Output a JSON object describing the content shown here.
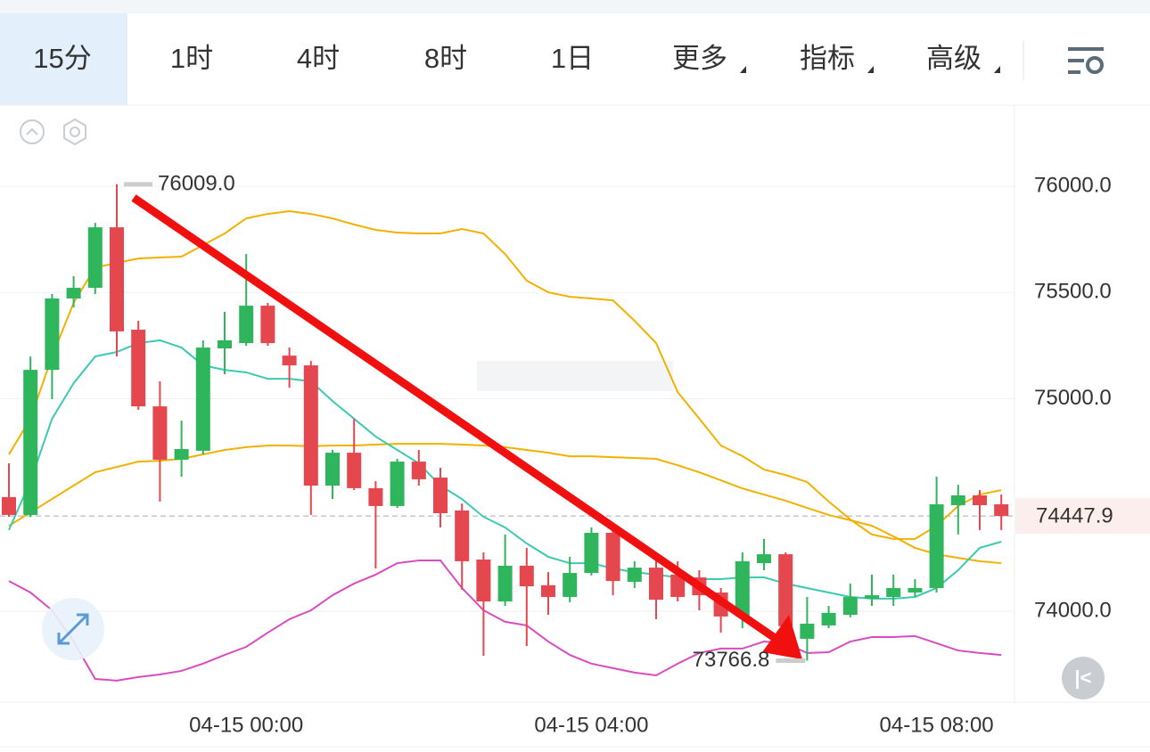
{
  "tabs": {
    "items": [
      "15分",
      "1时",
      "4时",
      "8时",
      "1日",
      "更多",
      "指标",
      "高级"
    ],
    "active": 0
  },
  "chart_data": {
    "type": "candlestick",
    "categories": [
      null,
      null,
      null,
      null,
      null,
      null,
      null,
      null,
      null,
      null,
      null,
      "04-15 00:00",
      null,
      null,
      null,
      null,
      null,
      null,
      null,
      null,
      null,
      null,
      null,
      null,
      null,
      null,
      null,
      "04-15 04:00",
      null,
      null,
      null,
      null,
      null,
      null,
      null,
      null,
      null,
      null,
      null,
      null,
      null,
      null,
      null,
      "04-15 08:00",
      null,
      null,
      null
    ],
    "open": [
      74537,
      74453,
      75136,
      75472,
      75522,
      75807,
      75325,
      74964,
      74713,
      74755,
      75237,
      75262,
      75438,
      75203,
      75157,
      74591,
      74746,
      74579,
      74495,
      74704,
      74629,
      74474,
      74243,
      74046,
      74214,
      74122,
      74067,
      74180,
      74369,
      74138,
      74205,
      74172,
      74159,
      74088,
      73975,
      74226,
      74268,
      73870,
      73933,
      73983,
      74059,
      74067,
      74088,
      74109,
      74499,
      74545,
      74503
    ],
    "high": [
      74696,
      75199,
      75493,
      75577,
      75828,
      76009,
      75367,
      75082,
      74897,
      75275,
      75409,
      75681,
      75451,
      75241,
      75178,
      74759,
      74906,
      74612,
      74717,
      74759,
      74675,
      74507,
      74277,
      74361,
      74298,
      74184,
      74256,
      74394,
      74402,
      74235,
      74243,
      74235,
      74193,
      74109,
      74277,
      74340,
      74277,
      74067,
      74025,
      74130,
      74172,
      74172,
      74151,
      74633,
      74595,
      74570,
      74549
    ],
    "low": [
      74444,
      74444,
      74998,
      75430,
      75493,
      75199,
      74948,
      74516,
      74633,
      74738,
      75115,
      75249,
      75249,
      75052,
      74453,
      74528,
      74570,
      74201,
      74486,
      74591,
      74394,
      74101,
      73790,
      74025,
      73836,
      73983,
      74042,
      74168,
      74075,
      74109,
      73962,
      74046,
      74004,
      73899,
      73920,
      74193,
      73857,
      73766.8,
      73920,
      73971,
      74025,
      74025,
      74067,
      74088,
      74361,
      74382,
      74382
    ],
    "close": [
      74453,
      75136,
      75472,
      75522,
      75807,
      75317,
      74964,
      74713,
      74763,
      75241,
      75275,
      75438,
      75262,
      75157,
      74591,
      74746,
      74579,
      74495,
      74704,
      74621,
      74461,
      74235,
      74046,
      74214,
      74117,
      74067,
      74180,
      74369,
      74142,
      74205,
      74054,
      74067,
      74075,
      73975,
      74235,
      74268,
      73929,
      73941,
      73992,
      74067,
      74075,
      74109,
      74109,
      74503,
      74545,
      74499,
      74447.9
    ],
    "up_color": "#2fb55c",
    "down_color": "#e5474f",
    "series": [
      {
        "color": "#f2b100",
        "values": [
          74738,
          74906,
          75199,
          75451,
          75618,
          75639,
          75660,
          75665,
          75669,
          75723,
          75778,
          75849,
          75870,
          75883,
          75870,
          75849,
          75820,
          75795,
          75782,
          75778,
          75778,
          75799,
          75778,
          75681,
          75556,
          75501,
          75480,
          75472,
          75463,
          75367,
          75262,
          75031,
          74906,
          74780,
          74730,
          74667,
          74641,
          74608,
          74516,
          74432,
          74361,
          74340,
          74340,
          74402,
          74495,
          74549,
          74570
        ]
      },
      {
        "color": "#f2b100",
        "values": [
          74402,
          74465,
          74528,
          74591,
          74654,
          74679,
          74704,
          74708,
          74717,
          74738,
          74759,
          74772,
          74780,
          74780,
          74776,
          74780,
          74780,
          74784,
          74788,
          74788,
          74788,
          74784,
          74780,
          74772,
          74759,
          74746,
          74729,
          74729,
          74725,
          74721,
          74717,
          74687,
          74654,
          74616,
          74578,
          74549,
          74520,
          74486,
          74453,
          74428,
          74402,
          74352,
          74298,
          74268,
          74251,
          74235,
          74226
        ]
      },
      {
        "color": "#d94cc0",
        "values": [
          74142,
          74088,
          74004,
          73857,
          73681,
          73673,
          73690,
          73702,
          73719,
          73753,
          73794,
          73832,
          73899,
          73962,
          74004,
          74075,
          74130,
          74172,
          74226,
          74239,
          74239,
          74109,
          74004,
          73950,
          73933,
          73857,
          73794,
          73753,
          73732,
          73711,
          73698,
          73753,
          73803,
          73824,
          73824,
          73857,
          73849,
          73803,
          73807,
          73857,
          73878,
          73878,
          73883,
          73849,
          73815,
          73803,
          73794
        ]
      },
      {
        "color": "#3cc9b1",
        "values": [
          74382,
          74612,
          74906,
          75073,
          75199,
          75220,
          75262,
          75275,
          75241,
          75157,
          75136,
          75124,
          75094,
          75094,
          75082,
          74989,
          74906,
          74822,
          74759,
          74696,
          74591,
          74528,
          74444,
          74394,
          74319,
          74256,
          74226,
          74226,
          74201,
          74184,
          74172,
          74159,
          74151,
          74151,
          74159,
          74159,
          74130,
          74109,
          74088,
          74067,
          74059,
          74059,
          74067,
          74109,
          74193,
          74298,
          74327
        ]
      }
    ],
    "ylim": [
      73572,
      76382
    ],
    "yticks": [
      {
        "value": 74000,
        "label": "74000.0"
      },
      {
        "value": 75000,
        "label": "75000.0"
      },
      {
        "value": 75500,
        "label": "75500.0"
      },
      {
        "value": 76000,
        "label": "76000.0"
      }
    ],
    "grid": true,
    "last_price": 74447.9,
    "annotations": [
      {
        "index": 5,
        "value": 76009,
        "label": "76009.0"
      },
      {
        "index": 37,
        "value": 73766.8,
        "label": "73766.8"
      }
    ]
  }
}
